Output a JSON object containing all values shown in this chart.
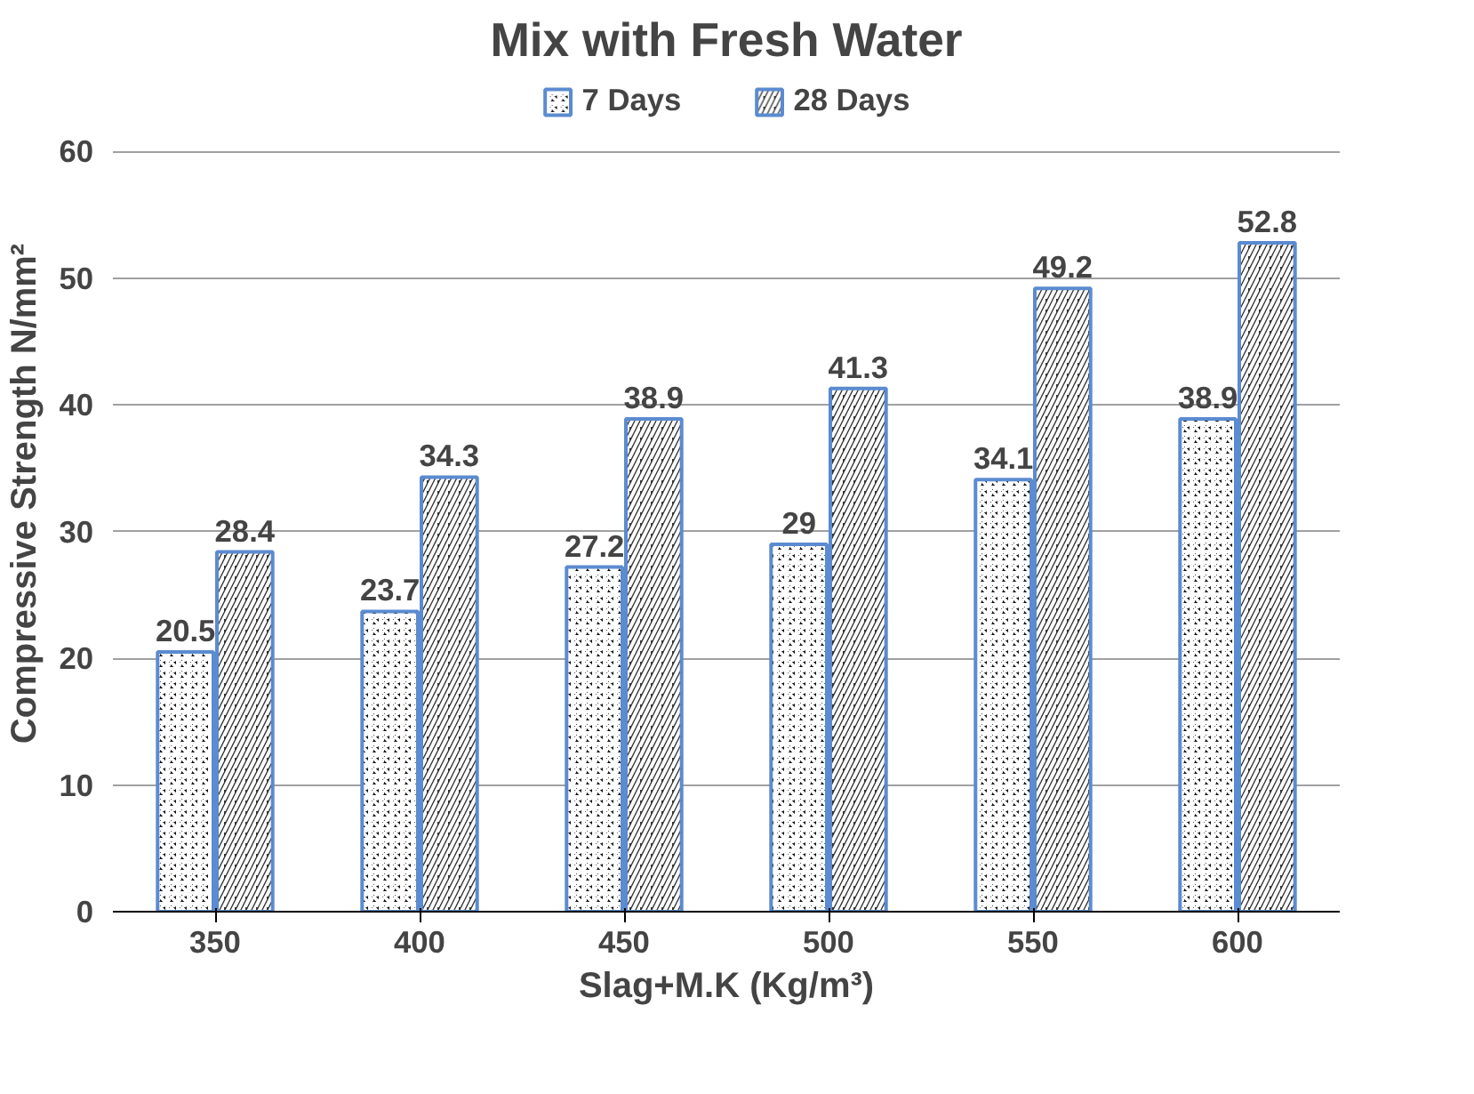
{
  "chart_data": {
    "type": "bar",
    "title": "Mix with Fresh Water",
    "xlabel": "Slag+M.K (Kg/m³)",
    "ylabel": "Compressive Strength N/mm²",
    "categories": [
      "350",
      "400",
      "450",
      "500",
      "550",
      "600"
    ],
    "series": [
      {
        "name": "7 Days",
        "color": "#111111",
        "values": [
          20.5,
          23.7,
          27.2,
          29,
          34.1,
          38.9
        ]
      },
      {
        "name": "28 Days",
        "color": "#333333",
        "values": [
          28.4,
          34.3,
          38.9,
          41.3,
          49.2,
          52.8
        ]
      }
    ],
    "ylim": [
      0,
      60
    ],
    "yticks": [
      0,
      10,
      20,
      30,
      40,
      50,
      60
    ],
    "grid": "y",
    "legend": "top",
    "data_labels": true
  }
}
